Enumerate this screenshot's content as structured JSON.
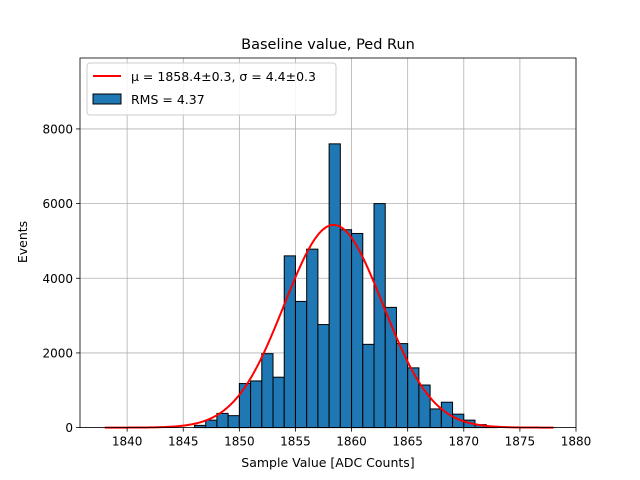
{
  "chart_data": {
    "type": "bar",
    "title": "Baseline value, Ped Run",
    "xlabel": "Sample Value [ADC Counts]",
    "ylabel": "Events",
    "xlim": [
      1835.8,
      1880
    ],
    "ylim": [
      0,
      9900
    ],
    "xticks": [
      1840,
      1845,
      1850,
      1855,
      1860,
      1865,
      1870,
      1875,
      1880
    ],
    "yticks": [
      0,
      2000,
      4000,
      6000,
      8000
    ],
    "grid": true,
    "legend_position": "upper-left",
    "histogram": {
      "name": "RMS = 4.37",
      "color": "#1f77b4",
      "bin_width": 1,
      "bins": [
        [
          1846,
          1847,
          60
        ],
        [
          1847,
          1848,
          200
        ],
        [
          1848,
          1849,
          380
        ],
        [
          1849,
          1850,
          320
        ],
        [
          1850,
          1851,
          1180
        ],
        [
          1851,
          1852,
          1250
        ],
        [
          1852,
          1853,
          1980
        ],
        [
          1853,
          1854,
          1350
        ],
        [
          1854,
          1855,
          4600
        ],
        [
          1855,
          1856,
          3380
        ],
        [
          1856,
          1857,
          4780
        ],
        [
          1857,
          1858,
          2760
        ],
        [
          1858,
          1859,
          7600
        ],
        [
          1859,
          1860,
          5300
        ],
        [
          1860,
          1861,
          5200
        ],
        [
          1861,
          1862,
          2230
        ],
        [
          1862,
          1863,
          6000
        ],
        [
          1863,
          1864,
          3220
        ],
        [
          1864,
          1865,
          2250
        ],
        [
          1865,
          1866,
          1600
        ],
        [
          1866,
          1867,
          1140
        ],
        [
          1867,
          1868,
          500
        ],
        [
          1868,
          1869,
          680
        ],
        [
          1869,
          1870,
          360
        ],
        [
          1870,
          1871,
          200
        ],
        [
          1871,
          1872,
          80
        ],
        [
          1872,
          1873,
          30
        ]
      ]
    },
    "fit": {
      "name": "μ = 1858.4±0.3, σ = 4.4±0.3",
      "type": "gaussian",
      "color": "#ff0000",
      "mu": 1858.4,
      "sigma": 4.4,
      "amplitude": 5430,
      "x_range": [
        1838,
        1878
      ]
    }
  }
}
